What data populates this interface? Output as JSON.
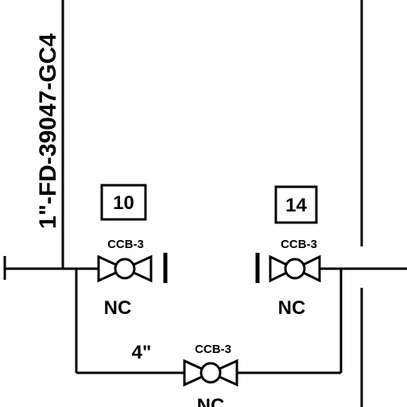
{
  "line_label": "1\"-FD-39047-GC4",
  "pipe_size": "4\"",
  "valves": [
    {
      "tag": "10",
      "code": "CCB-3",
      "state": "NC"
    },
    {
      "tag": "14",
      "code": "CCB-3",
      "state": "NC"
    },
    {
      "tag": "",
      "code": "CCB-3",
      "state": "NC"
    }
  ]
}
